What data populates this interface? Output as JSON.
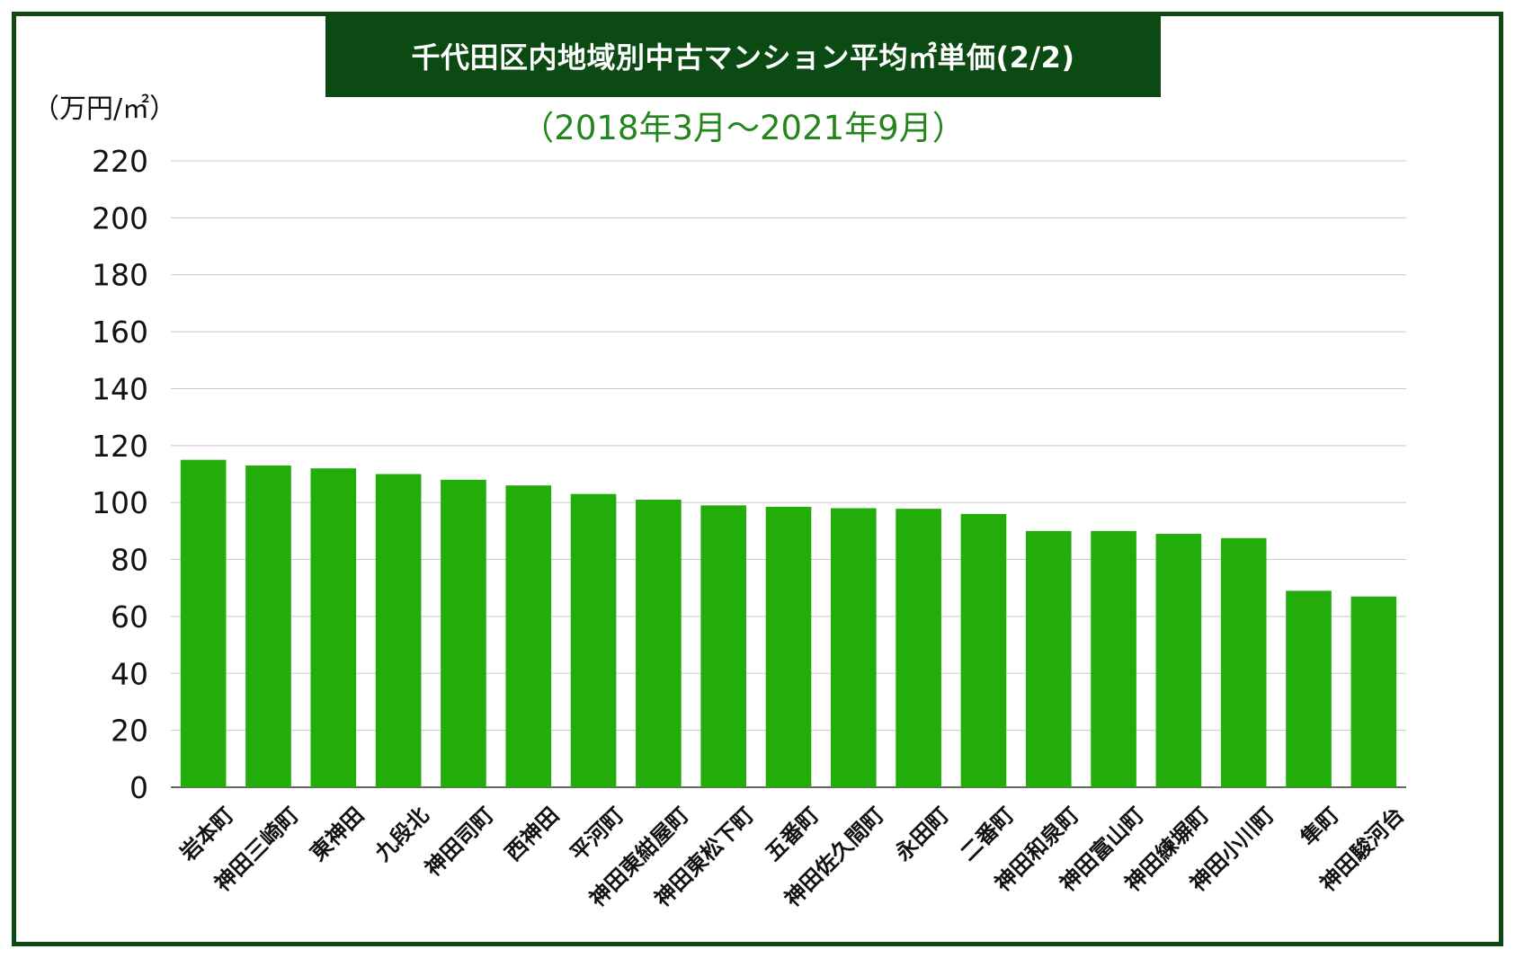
{
  "chart_data": {
    "type": "bar",
    "title": "千代田区内地域別中古マンション平均㎡単価(2/2)",
    "subtitle": "（2018年3月～2021年9月）",
    "ylabel": "（万円/㎡）",
    "xlabel": "",
    "ylim": [
      0,
      220
    ],
    "yticks": [
      0,
      20,
      40,
      60,
      80,
      100,
      120,
      140,
      160,
      180,
      200,
      220
    ],
    "grid": true,
    "categories": [
      "岩本町",
      "神田三崎町",
      "東神田",
      "九段北",
      "神田司町",
      "西神田",
      "平河町",
      "神田東紺屋町",
      "神田東松下町",
      "五番町",
      "神田佐久間町",
      "永田町",
      "二番町",
      "神田和泉町",
      "神田富山町",
      "神田練塀町",
      "神田小川町",
      "隼町",
      "神田駿河台"
    ],
    "values": [
      115,
      113,
      112,
      110,
      108,
      106,
      103,
      101,
      99,
      98.5,
      98,
      97.8,
      96,
      90,
      90,
      89,
      87.5,
      69,
      67
    ],
    "colors": {
      "bar": "#22ad0b",
      "frame": "#0b4a12",
      "title_bg": "#0b4a12",
      "subtitle": "#23851c",
      "grid": "#c8c8c8"
    }
  }
}
